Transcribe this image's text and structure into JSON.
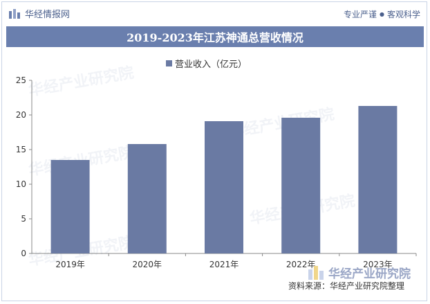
{
  "header": {
    "brand_name": "华经情报网",
    "tag1": "专业严谨",
    "tag_sep": "●",
    "tag2": "客观科学"
  },
  "colors": {
    "bar": "#6a7aa3",
    "title_bg": "#6a7fae",
    "axis": "#888888"
  },
  "chart_data": {
    "type": "bar",
    "title": "2019-2023年江苏神通总营收情况",
    "categories": [
      "2019年",
      "2020年",
      "2021年",
      "2022年",
      "2023年"
    ],
    "series": [
      {
        "name": "营业收入（亿元）",
        "values": [
          13.5,
          15.8,
          19.1,
          19.6,
          21.3
        ]
      }
    ],
    "ylim": [
      0,
      25
    ],
    "yticks": [
      0,
      5,
      10,
      15,
      20,
      25
    ],
    "xlabel": "",
    "ylabel": "",
    "legend": "top-center",
    "grid": false
  },
  "footer": {
    "logo_text": "华经产业研究院",
    "source": "资料来源：华经产业研究院整理"
  },
  "watermark_text": "华经产业研究院"
}
